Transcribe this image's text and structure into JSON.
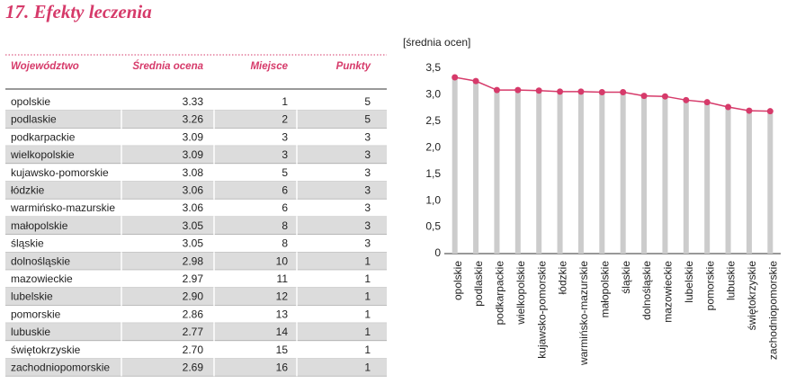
{
  "title": "17. Efekty leczenia",
  "table": {
    "columns": [
      "Województwo",
      "Średnia ocena",
      "Miejsce",
      "Punkty"
    ],
    "rows": [
      [
        "opolskie",
        "3.33",
        "1",
        "5"
      ],
      [
        "podlaskie",
        "3.26",
        "2",
        "5"
      ],
      [
        "podkarpackie",
        "3.09",
        "3",
        "3"
      ],
      [
        "wielkopolskie",
        "3.09",
        "3",
        "3"
      ],
      [
        "kujawsko-pomorskie",
        "3.08",
        "5",
        "3"
      ],
      [
        "łódzkie",
        "3.06",
        "6",
        "3"
      ],
      [
        "warmińsko-mazurskie",
        "3.06",
        "6",
        "3"
      ],
      [
        "małopolskie",
        "3.05",
        "8",
        "3"
      ],
      [
        "śląskie",
        "3.05",
        "8",
        "3"
      ],
      [
        "dolnośląskie",
        "2.98",
        "10",
        "1"
      ],
      [
        "mazowieckie",
        "2.97",
        "11",
        "1"
      ],
      [
        "lubelskie",
        "2.90",
        "12",
        "1"
      ],
      [
        "pomorskie",
        "2.86",
        "13",
        "1"
      ],
      [
        "lubuskie",
        "2.77",
        "14",
        "1"
      ],
      [
        "świętokrzyskie",
        "2.70",
        "15",
        "1"
      ],
      [
        "zachodniopomorskie",
        "2.69",
        "16",
        "1"
      ]
    ]
  },
  "chart_data": {
    "type": "line",
    "y_label": "[średnia ocen]",
    "categories": [
      "opolskie",
      "podlaskie",
      "podkarpackie",
      "wielkopolskie",
      "kujawsko-pomorskie",
      "łódzkie",
      "warmińsko-mazurskie",
      "małopolskie",
      "śląskie",
      "dolnośląskie",
      "mazowieckie",
      "lubelskie",
      "pomorskie",
      "lubuskie",
      "świętokrzyskie",
      "zachodniopomorskie"
    ],
    "values": [
      3.33,
      3.26,
      3.09,
      3.09,
      3.08,
      3.06,
      3.06,
      3.05,
      3.05,
      2.98,
      2.97,
      2.9,
      2.86,
      2.77,
      2.7,
      2.69
    ],
    "color": "#d63a6a",
    "bar_color": "#cccccc",
    "ylim": [
      0,
      3.5
    ],
    "yticks": [
      0,
      {
        "value": 0.5,
        "label": "0,5"
      },
      {
        "value": 1.0,
        "label": "1,0"
      },
      {
        "value": 1.5,
        "label": "1,5"
      },
      {
        "value": 2.0,
        "label": "2,0"
      },
      {
        "value": 2.5,
        "label": "2,5"
      },
      {
        "value": 3.0,
        "label": "3,0"
      },
      {
        "value": 3.5,
        "label": "3,5"
      }
    ]
  }
}
